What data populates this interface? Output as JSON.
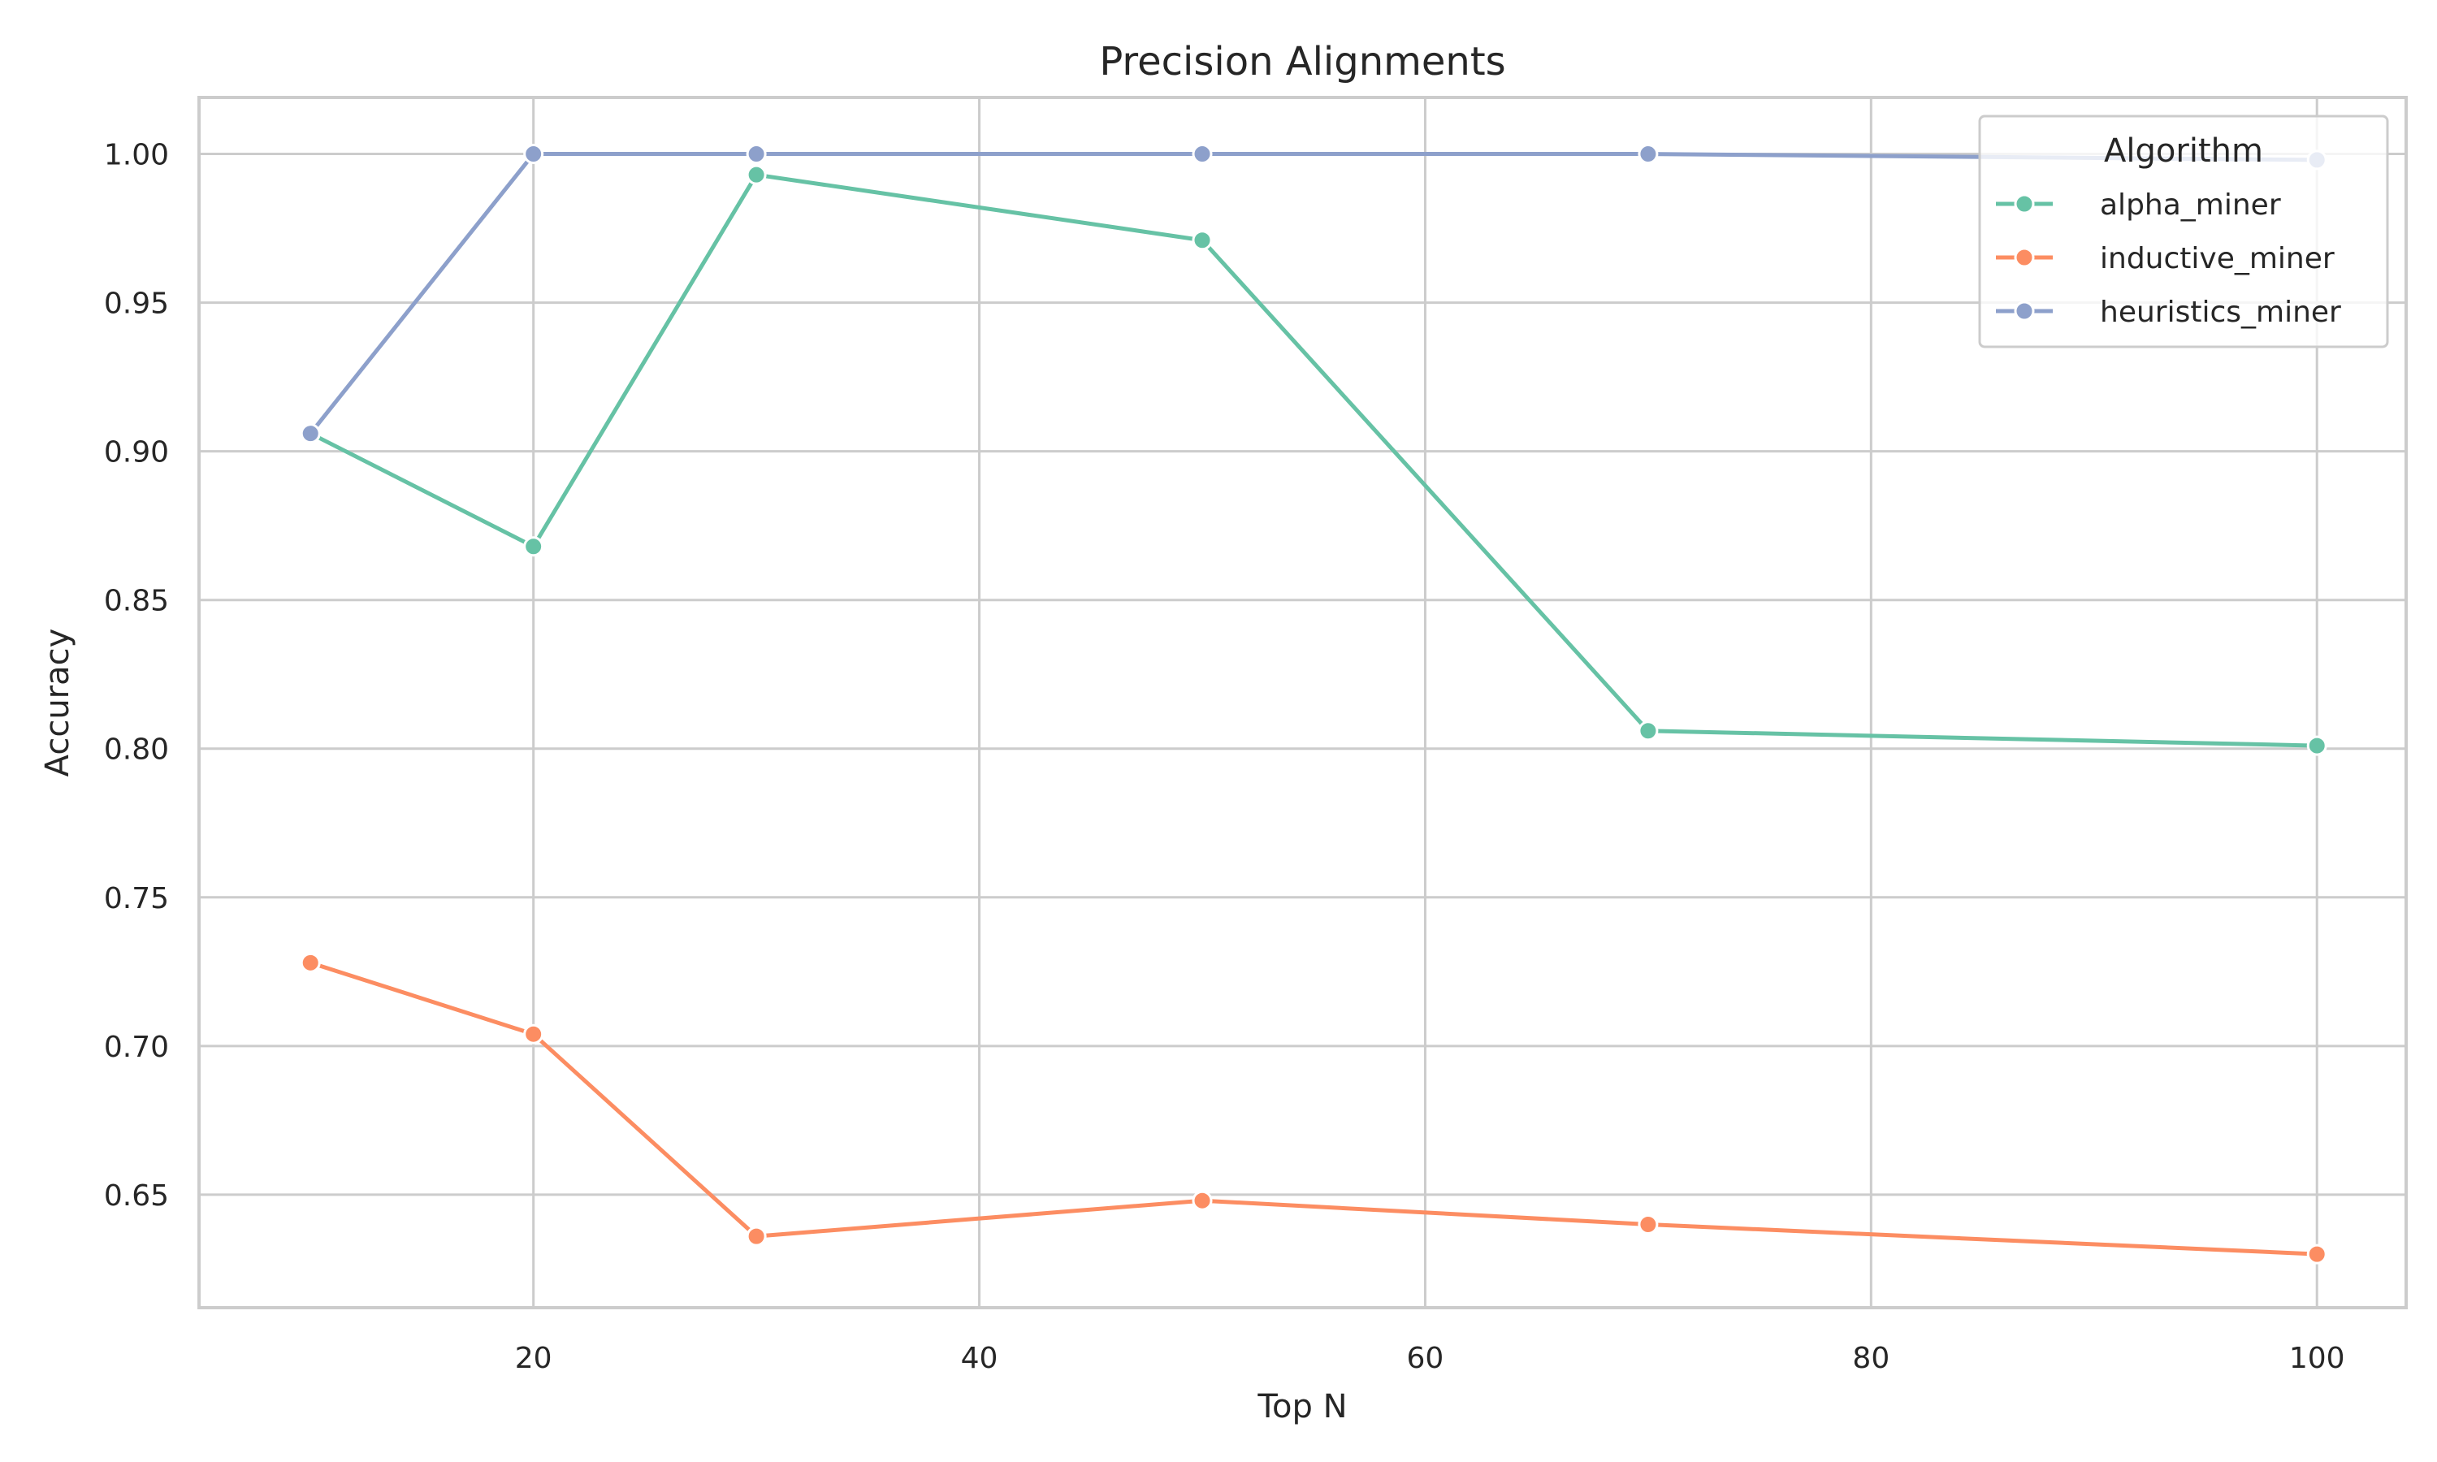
{
  "chart_data": {
    "type": "line",
    "title": "Precision Alignments",
    "xlabel": "Top N",
    "ylabel": "Accuracy",
    "xlim": [
      5,
      104
    ],
    "ylim": [
      0.612,
      1.019
    ],
    "xticks": [
      20,
      40,
      60,
      80,
      100
    ],
    "yticks": [
      0.65,
      0.7,
      0.75,
      0.8,
      0.85,
      0.9,
      0.95,
      1.0
    ],
    "grid": true,
    "legend": {
      "title": "Algorithm",
      "position": "top-right"
    },
    "x": [
      10,
      20,
      30,
      50,
      70,
      100
    ],
    "series": [
      {
        "name": "alpha_miner",
        "color": "#66c2a5",
        "values": [
          0.906,
          0.868,
          0.993,
          0.971,
          0.806,
          0.801
        ]
      },
      {
        "name": "inductive_miner",
        "color": "#fc8d62",
        "values": [
          0.728,
          0.704,
          0.636,
          0.648,
          0.64,
          0.63
        ]
      },
      {
        "name": "heuristics_miner",
        "color": "#8da0cb",
        "values": [
          0.906,
          1.0,
          1.0,
          1.0,
          1.0,
          0.998
        ]
      }
    ]
  }
}
